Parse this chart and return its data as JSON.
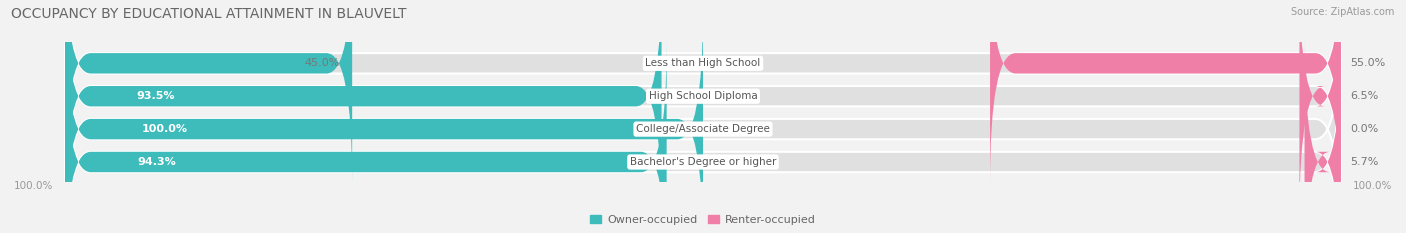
{
  "title": "OCCUPANCY BY EDUCATIONAL ATTAINMENT IN BLAUVELT",
  "source": "Source: ZipAtlas.com",
  "categories": [
    "Less than High School",
    "High School Diploma",
    "College/Associate Degree",
    "Bachelor's Degree or higher"
  ],
  "owner_pct": [
    45.0,
    93.5,
    100.0,
    94.3
  ],
  "renter_pct": [
    55.0,
    6.5,
    0.0,
    5.7
  ],
  "owner_color": "#3DBCBB",
  "renter_color": "#F07FA8",
  "bg_color": "#f2f2f2",
  "bar_bg_color": "#e0e0e0",
  "bar_bg_inner": "#ececec",
  "legend_owner": "Owner-occupied",
  "legend_renter": "Renter-occupied",
  "axis_label_left": "100.0%",
  "axis_label_right": "100.0%",
  "bar_height": 0.62,
  "title_fontsize": 10,
  "label_fontsize": 8,
  "cat_fontsize": 7.5,
  "tick_fontsize": 7.5,
  "owner_pct_label_color_inside": "#ffffff",
  "owner_pct_label_color_outside": "#777777"
}
